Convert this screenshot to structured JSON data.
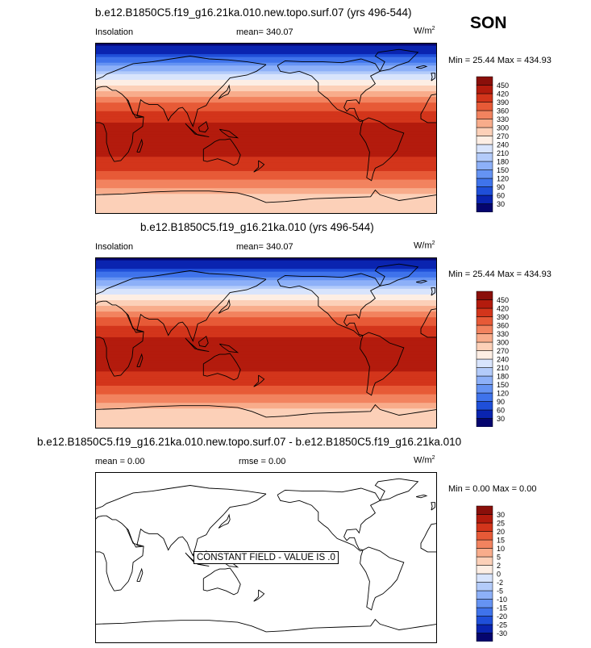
{
  "season": "SON",
  "panels": [
    {
      "title": "b.e12.B1850C5.f19_g16.21ka.010.new.topo.surf.07 (yrs 496-544)",
      "left_label": "Insolation",
      "center_label": "mean= 340.07",
      "units_base": "W/m",
      "units_exp": "2",
      "minmax": "Min = 25.44 Max = 434.93"
    },
    {
      "title": "b.e12.B1850C5.f19_g16.21ka.010 (yrs 496-544)",
      "left_label": "Insolation",
      "center_label": "mean= 340.07",
      "units_base": "W/m",
      "units_exp": "2",
      "minmax": "Min = 25.44 Max = 434.93"
    },
    {
      "title": "b.e12.B1850C5.f19_g16.21ka.010.new.topo.surf.07 - b.e12.B1850C5.f19_g16.21ka.010",
      "left_label": "mean = 0.00",
      "center_label": "rmse = 0.00",
      "units_base": "W/m",
      "units_exp": "2",
      "minmax": "Min = 0.00 Max = 0.00",
      "constant_field_label": "CONSTANT FIELD - VALUE IS .0"
    }
  ],
  "chart_data": [
    {
      "type": "heatmap",
      "title": "b.e12.B1850C5.f19_g16.21ka.010.new.topo.surf.07 (yrs 496-544)",
      "variable": "Insolation",
      "units": "W/m2",
      "mean": 340.07,
      "min": 25.44,
      "max": 434.93,
      "colorbar_levels": [
        30,
        60,
        90,
        120,
        150,
        180,
        210,
        240,
        270,
        300,
        330,
        360,
        390,
        420,
        450
      ],
      "colorbar_colors": [
        "#05056e",
        "#0a24b0",
        "#1f4fd9",
        "#3f73eb",
        "#6593f3",
        "#8db0f8",
        "#b3cbfa",
        "#d8e4fc",
        "#fdeee4",
        "#fcd0b8",
        "#f8ac8b",
        "#f2835f",
        "#e75a37",
        "#d3351b",
        "#b31b0d",
        "#8a0f0a"
      ],
      "lat_profile": {
        "lat": [
          90,
          80,
          70,
          60,
          50,
          40,
          30,
          20,
          10,
          0,
          -10,
          -20,
          -30,
          -40,
          -50,
          -60,
          -70,
          -80,
          -90
        ],
        "value": [
          25,
          55,
          120,
          185,
          245,
          300,
          345,
          385,
          415,
          430,
          435,
          432,
          420,
          400,
          375,
          345,
          300,
          275,
          270
        ]
      }
    },
    {
      "type": "heatmap",
      "title": "b.e12.B1850C5.f19_g16.21ka.010 (yrs 496-544)",
      "variable": "Insolation",
      "units": "W/m2",
      "mean": 340.07,
      "min": 25.44,
      "max": 434.93,
      "colorbar_levels": [
        30,
        60,
        90,
        120,
        150,
        180,
        210,
        240,
        270,
        300,
        330,
        360,
        390,
        420,
        450
      ],
      "colorbar_colors": [
        "#05056e",
        "#0a24b0",
        "#1f4fd9",
        "#3f73eb",
        "#6593f3",
        "#8db0f8",
        "#b3cbfa",
        "#d8e4fc",
        "#fdeee4",
        "#fcd0b8",
        "#f8ac8b",
        "#f2835f",
        "#e75a37",
        "#d3351b",
        "#b31b0d",
        "#8a0f0a"
      ],
      "lat_profile": {
        "lat": [
          90,
          80,
          70,
          60,
          50,
          40,
          30,
          20,
          10,
          0,
          -10,
          -20,
          -30,
          -40,
          -50,
          -60,
          -70,
          -80,
          -90
        ],
        "value": [
          25,
          55,
          120,
          185,
          245,
          300,
          345,
          385,
          415,
          430,
          435,
          432,
          420,
          400,
          375,
          345,
          300,
          275,
          270
        ]
      }
    },
    {
      "type": "heatmap",
      "title": "b.e12.B1850C5.f19_g16.21ka.010.new.topo.surf.07 - b.e12.B1850C5.f19_g16.21ka.010",
      "units": "W/m2",
      "mean": 0.0,
      "rmse": 0.0,
      "min": 0.0,
      "max": 0.0,
      "constant_value": 0,
      "colorbar_levels": [
        -30,
        -25,
        -20,
        -15,
        -10,
        -5,
        -2,
        0,
        2,
        5,
        10,
        15,
        20,
        25,
        30
      ],
      "colorbar_colors": [
        "#05056e",
        "#0a24b0",
        "#1f4fd9",
        "#3f73eb",
        "#6593f3",
        "#8db0f8",
        "#b3cbfa",
        "#d8e4fc",
        "#fdeee4",
        "#fcd0b8",
        "#f8ac8b",
        "#f2835f",
        "#e75a37",
        "#d3351b",
        "#b31b0d",
        "#8a0f0a"
      ]
    }
  ]
}
